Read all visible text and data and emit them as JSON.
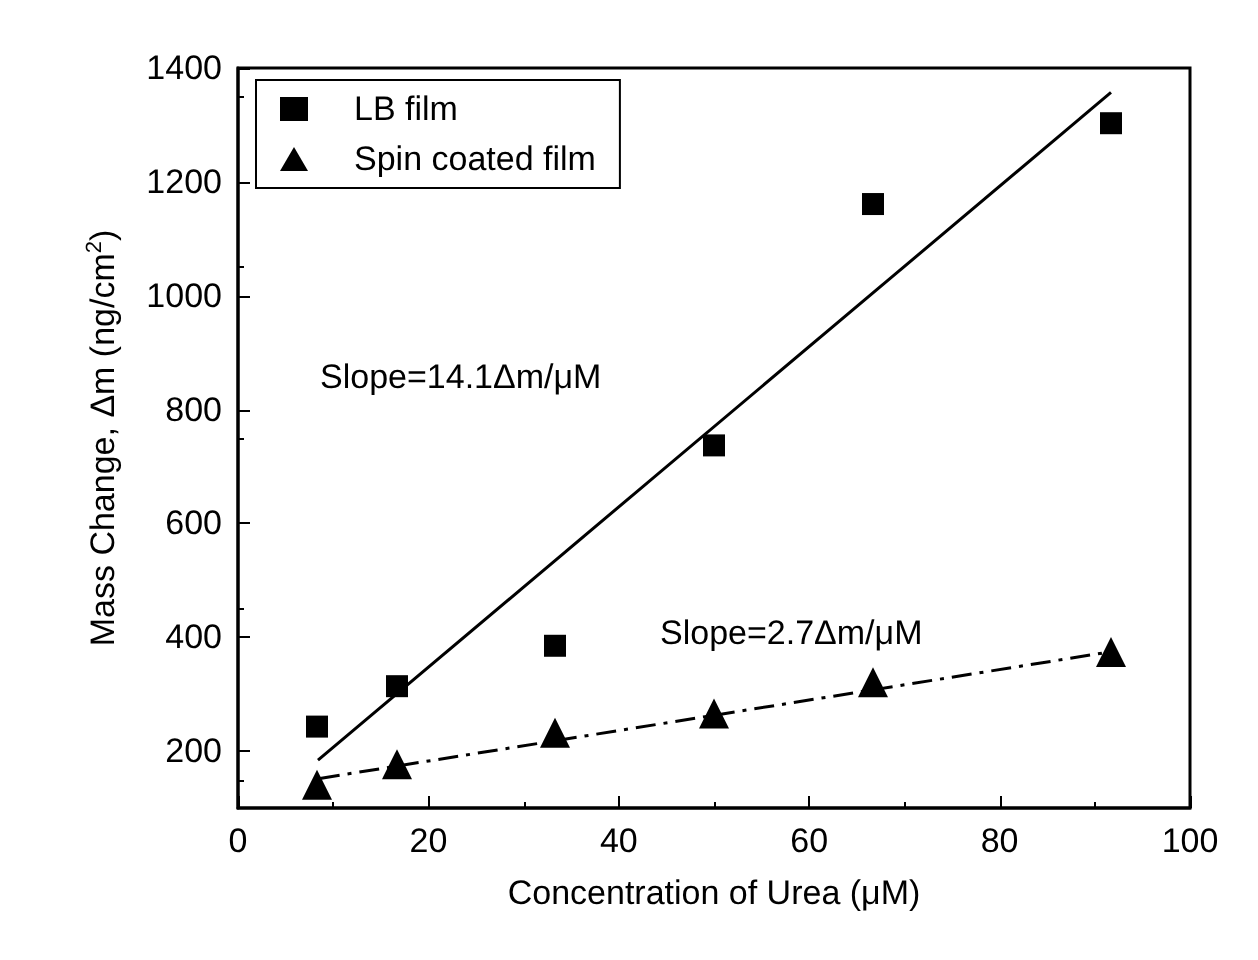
{
  "chart_data": {
    "type": "scatter",
    "xlabel": "Concentration of Urea (μM)",
    "ylabel": "Mass Change, Δm (ng/cm$^{2}$)",
    "xlim": [
      0,
      100
    ],
    "xticks": [
      0,
      20,
      40,
      60,
      80,
      100
    ],
    "ylim": [
      100,
      1400
    ],
    "yticks": [
      200,
      400,
      600,
      800,
      1000,
      1200,
      1400
    ],
    "grid": false,
    "legend": "top left",
    "annotations": [
      "Slope=14.1Δm/μM",
      "Slope=2.7Δm/μM"
    ],
    "series": [
      {
        "name": "LB film",
        "color": "#000000",
        "marker": "square",
        "x": [
          8.3,
          16.7,
          33.3,
          50,
          66.7,
          91.7
        ],
        "values": [
          243,
          314,
          385,
          737,
          1161,
          1303
        ]
      },
      {
        "name": "Spin coated film",
        "color": "#000000",
        "marker": "triangle",
        "x": [
          8.3,
          16.7,
          33.3,
          50,
          66.7,
          91.7
        ],
        "values": [
          141,
          177,
          232,
          266,
          321,
          374
        ]
      },
      {
        "type": "line",
        "color": "#000000",
        "marker": "none",
        "line_style": "solid",
        "x": [
          8.4,
          91.7
        ],
        "values": [
          184,
          1357
        ]
      },
      {
        "type": "line",
        "color": "#000000",
        "marker": "none",
        "line_style": "dashed",
        "x": [
          8.6,
          91.5
        ],
        "values": [
          152,
          374
        ]
      }
    ]
  }
}
